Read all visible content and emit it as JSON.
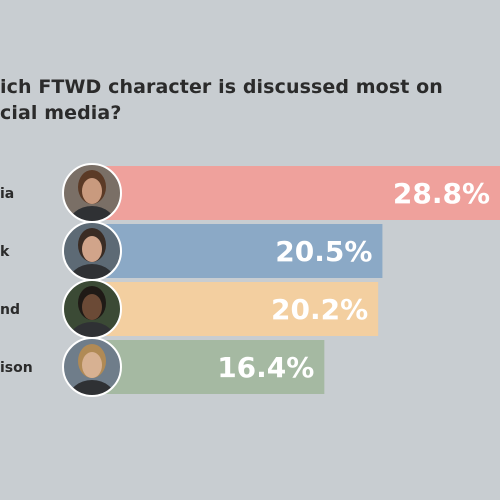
{
  "title_line1": "ich FTWD character is discussed most on",
  "title_line2": "cial media?",
  "colors": {
    "background": "#c8cdd1",
    "bars": [
      "#efa19c",
      "#8ba9c6",
      "#f3cfa0",
      "#a5b9a2"
    ]
  },
  "chart_data": {
    "type": "bar",
    "orientation": "horizontal",
    "title": "ich FTWD character is discussed most on cial media?",
    "categories": [
      "ia",
      "k",
      "nd",
      "ison"
    ],
    "values": [
      28.8,
      20.5,
      20.2,
      16.4
    ],
    "value_labels": [
      "28.8%",
      "20.5%",
      "20.2%",
      "16.4%"
    ],
    "xlim": [
      0,
      30
    ],
    "grid": false,
    "legend": "none"
  }
}
